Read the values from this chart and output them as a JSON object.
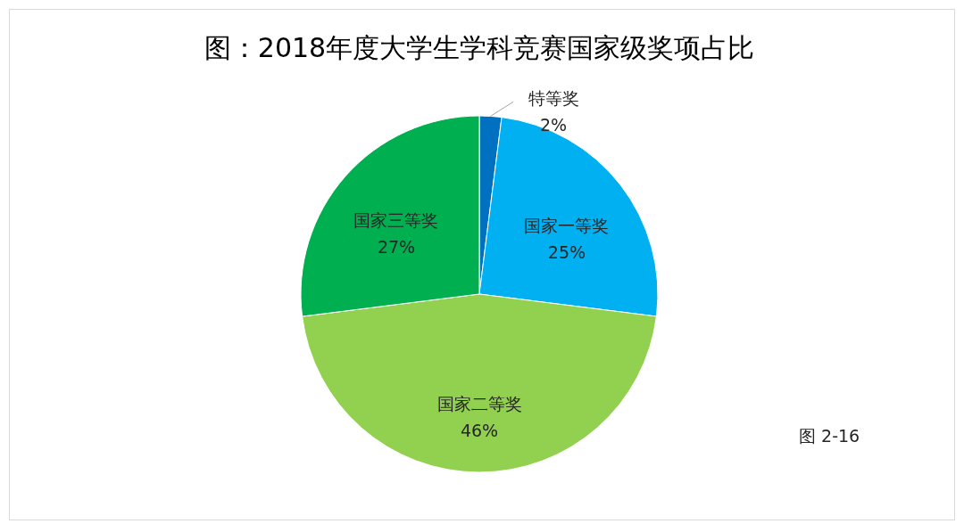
{
  "chart_data": {
    "type": "pie",
    "title": "图：2018年度大学生学科竞赛国家级奖项占比",
    "categories": [
      "特等奖",
      "国家一等奖",
      "国家二等奖",
      "国家三等奖"
    ],
    "values": [
      2,
      25,
      46,
      27
    ],
    "value_labels": [
      "2%",
      "25%",
      "46%",
      "27%"
    ],
    "colors": [
      "#0070c0",
      "#00b0f0",
      "#92d050",
      "#00b050"
    ],
    "annotations": [
      "图 2-16"
    ],
    "legend": false
  }
}
